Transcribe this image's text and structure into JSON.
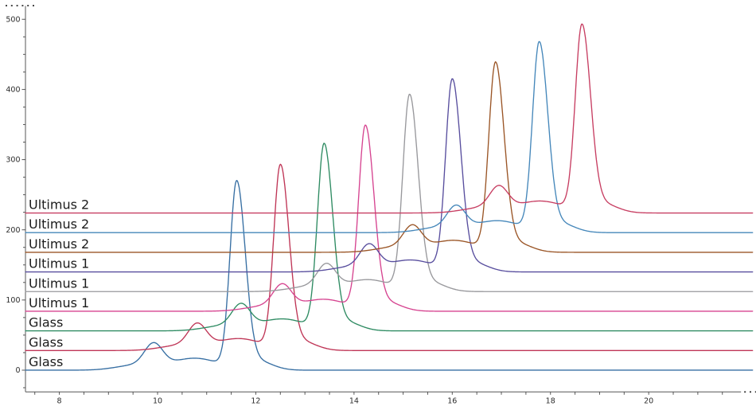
{
  "chart_data": {
    "type": "line",
    "title": "",
    "xlabel": "",
    "ylabel": "",
    "grid": false,
    "legend": "inline-left-labels",
    "axis_color": "#555555",
    "tick_label_color": "#2b2b2b",
    "series_label_color": "#1b1b1b",
    "background_color": "#ffffff",
    "x_axis": {
      "min": 7.31,
      "max": 22.12,
      "major_tick_step": 2,
      "minor_tick_step": 0.5,
      "labeled_ticks": [
        8,
        10,
        12,
        14,
        16,
        18,
        20
      ],
      "solid_line_end": 21.88,
      "truncated_right": true
    },
    "y_axis": {
      "min": -31,
      "max": 519,
      "major_tick_step": 100,
      "minor_tick_step": 25,
      "labeled_ticks": [
        0,
        100,
        200,
        300,
        400,
        500
      ],
      "truncated_top": true
    },
    "peak_shape": {
      "prepeak_sigma": 0.185,
      "main_sigma_left": 0.135,
      "main_sigma_right": 0.175,
      "foot_amp": 7,
      "foot_offset": -2.05,
      "foot_sigma": 0.4,
      "saddle_amp": 17,
      "saddle_offset": -0.85,
      "saddle_sigma": 0.48,
      "tail_amp": 13,
      "tail_offset": 0.42,
      "tail_sigma": 0.3
    },
    "series": [
      {
        "label": "Glass",
        "color": "#376fa3",
        "baseline": 0,
        "peak_x": 11.61,
        "peak_value": 269,
        "prepeak_x": 9.92,
        "prepeak_value": 37
      },
      {
        "label": "Glass",
        "color": "#bf3556",
        "baseline": 28,
        "peak_x": 12.5,
        "peak_value": 292,
        "prepeak_x": 10.81,
        "prepeak_value": 65
      },
      {
        "label": "Glass",
        "color": "#2e8b62",
        "baseline": 56,
        "peak_x": 13.39,
        "peak_value": 322,
        "prepeak_x": 11.7,
        "prepeak_value": 93
      },
      {
        "label": "Ultimus 1",
        "color": "#d64490",
        "baseline": 84,
        "peak_x": 14.23,
        "peak_value": 348,
        "prepeak_x": 12.54,
        "prepeak_value": 121
      },
      {
        "label": "Ultimus 1",
        "color": "#98989c",
        "baseline": 112,
        "peak_x": 15.13,
        "peak_value": 392,
        "prepeak_x": 13.44,
        "prepeak_value": 150
      },
      {
        "label": "Ultimus 1",
        "color": "#584e9e",
        "baseline": 140,
        "peak_x": 16.0,
        "peak_value": 414,
        "prepeak_x": 14.31,
        "prepeak_value": 178
      },
      {
        "label": "Ultimus 2",
        "color": "#9a5526",
        "baseline": 168,
        "peak_x": 16.88,
        "peak_value": 438,
        "prepeak_x": 15.19,
        "prepeak_value": 205
      },
      {
        "label": "Ultimus 2",
        "color": "#4587ba",
        "baseline": 196,
        "peak_x": 17.77,
        "peak_value": 467,
        "prepeak_x": 16.08,
        "prepeak_value": 233
      },
      {
        "label": "Ultimus 2",
        "color": "#c73e62",
        "baseline": 224,
        "peak_x": 18.64,
        "peak_value": 492,
        "prepeak_x": 16.95,
        "prepeak_value": 261
      }
    ]
  }
}
